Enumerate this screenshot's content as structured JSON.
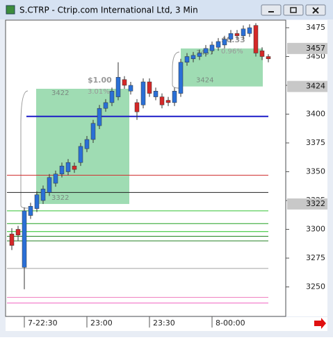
{
  "window": {
    "title": "S.CTRP - Ctrip.com International Ltd, 3 Min"
  },
  "chart_data": {
    "type": "candlestick",
    "categories": [
      null,
      null,
      "7-22:30",
      null,
      null,
      null,
      null,
      null,
      null,
      null,
      null,
      null,
      "23:00",
      null,
      null,
      null,
      null,
      null,
      null,
      null,
      null,
      null,
      "23:30",
      null,
      null,
      null,
      null,
      null,
      null,
      null,
      null,
      null,
      "8-00:00",
      null,
      null,
      null,
      null,
      null,
      null,
      null,
      null,
      null
    ],
    "open": [
      3296,
      3300,
      3267,
      3312,
      3318,
      3325,
      3332,
      3340,
      3348,
      3350,
      3355,
      3358,
      3370,
      3378,
      3390,
      3405,
      3410,
      3415,
      3430,
      3420,
      3410,
      3408,
      3428,
      3415,
      3415,
      3412,
      3410,
      3418,
      3445,
      3448,
      3450,
      3453,
      3455,
      3458,
      3460,
      3465,
      3470,
      3468,
      3470,
      3477,
      3455,
      3450
    ],
    "high": [
      3301,
      3303,
      3319,
      3323,
      3333,
      3338,
      3348,
      3351,
      3358,
      3361,
      3358,
      3375,
      3381,
      3395,
      3408,
      3413,
      3423,
      3445,
      3433,
      3428,
      3413,
      3431,
      3431,
      3423,
      3418,
      3415,
      3423,
      3448,
      3453,
      3454,
      3456,
      3460,
      3463,
      3466,
      3468,
      3473,
      3473,
      3477,
      3478,
      3479,
      3458,
      3452
    ],
    "low": [
      3282,
      3290,
      3248,
      3309,
      3315,
      3322,
      3329,
      3337,
      3345,
      3347,
      3349,
      3355,
      3367,
      3375,
      3387,
      3402,
      3407,
      3412,
      3422,
      3417,
      3395,
      3405,
      3415,
      3412,
      3405,
      3407,
      3407,
      3415,
      3442,
      3445,
      3447,
      3450,
      3452,
      3455,
      3457,
      3462,
      3465,
      3465,
      3467,
      3450,
      3447,
      3445
    ],
    "close": [
      3286,
      3295,
      3316,
      3320,
      3330,
      3335,
      3345,
      3348,
      3355,
      3358,
      3352,
      3372,
      3378,
      3392,
      3405,
      3410,
      3420,
      3432,
      3425,
      3425,
      3402,
      3428,
      3418,
      3420,
      3408,
      3410,
      3420,
      3445,
      3450,
      3451,
      3453,
      3457,
      3460,
      3463,
      3465,
      3470,
      3468,
      3474,
      3475,
      3453,
      3450,
      3448
    ],
    "up_color": "#2a6fd6",
    "down_color": "#d42828",
    "ylim": [
      3225,
      3481
    ],
    "yticks": [
      3250,
      3275,
      3300,
      3325,
      3350,
      3375,
      3400,
      3425,
      3450,
      3475
    ],
    "levels": [
      {
        "value": 3398,
        "color": "#1c1cc8"
      },
      {
        "value": 3347,
        "color": "#d03030"
      },
      {
        "value": 3332,
        "color": "#202020"
      },
      {
        "value": 3316,
        "color": "#30c030"
      },
      {
        "value": 3305,
        "color": "#20a020"
      },
      {
        "value": 3298,
        "color": "#20c020"
      },
      {
        "value": 3294,
        "color": "#208020"
      },
      {
        "value": 3290,
        "color": "#208020"
      },
      {
        "value": 3266,
        "color": "#a0a0a0"
      },
      {
        "value": 3241,
        "color": "#f080c0"
      },
      {
        "value": 3236,
        "color": "#f060c0"
      }
    ],
    "zones": [
      {
        "low": 3322,
        "high": 3422,
        "change": "$1.00",
        "percent": "3.01%"
      },
      {
        "low": 3424,
        "high": 3457,
        "change": "$0.33",
        "percent": "0.96%"
      }
    ],
    "price_labels": [
      3457,
      3424,
      3322
    ]
  }
}
